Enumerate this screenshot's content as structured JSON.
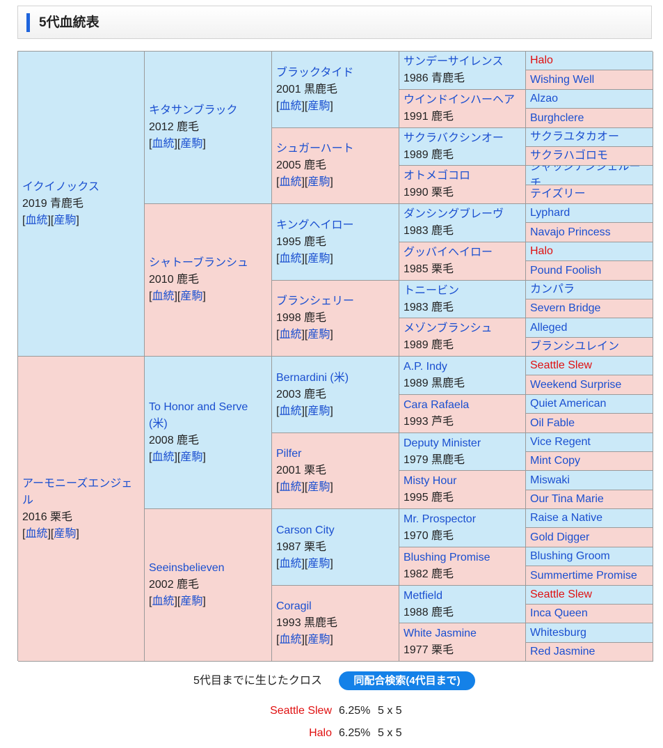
{
  "title": "5代血統表",
  "link_labels": {
    "pedigree": "血統",
    "offspring": "産駒"
  },
  "gen1": [
    {
      "name": "イクイノックス",
      "info": "2019 青鹿毛"
    },
    {
      "name": "アーモニーズエンジェル",
      "info": "2016 栗毛"
    }
  ],
  "gen2": [
    {
      "name": "キタサンブラック",
      "info": "2012 鹿毛"
    },
    {
      "name": "シャトーブランシュ",
      "info": "2010 鹿毛"
    },
    {
      "name": "To Honor and Serve (米)",
      "info": "2008 鹿毛"
    },
    {
      "name": "Seeinsbelieven",
      "info": "2002 鹿毛"
    }
  ],
  "gen3": [
    {
      "name": "ブラックタイド",
      "info": "2001 黒鹿毛"
    },
    {
      "name": "シュガーハート",
      "info": "2005 鹿毛"
    },
    {
      "name": "キングヘイロー",
      "info": "1995 鹿毛"
    },
    {
      "name": "ブランシェリー",
      "info": "1998 鹿毛"
    },
    {
      "name": "Bernardini (米)",
      "info": "2003 鹿毛"
    },
    {
      "name": "Pilfer",
      "info": "2001 栗毛"
    },
    {
      "name": "Carson City",
      "info": "1987 栗毛"
    },
    {
      "name": "Coragil",
      "info": "1993 黒鹿毛"
    }
  ],
  "gen4": [
    {
      "name": "サンデーサイレンス",
      "info": "1986 青鹿毛"
    },
    {
      "name": "ウインドインハーヘア",
      "info": "1991 鹿毛"
    },
    {
      "name": "サクラバクシンオー",
      "info": "1989 鹿毛"
    },
    {
      "name": "オトメゴコロ",
      "info": "1990 栗毛"
    },
    {
      "name": "ダンシングブレーヴ",
      "info": "1983 鹿毛"
    },
    {
      "name": "グッバイヘイロー",
      "info": "1985 栗毛"
    },
    {
      "name": "トニービン",
      "info": "1983 鹿毛"
    },
    {
      "name": "メゾンブランシュ",
      "info": "1989 鹿毛"
    },
    {
      "name": "A.P. Indy",
      "info": "1989 黒鹿毛"
    },
    {
      "name": "Cara Rafaela",
      "info": "1993 芦毛"
    },
    {
      "name": "Deputy Minister",
      "info": "1979 黒鹿毛"
    },
    {
      "name": "Misty Hour",
      "info": "1995 鹿毛"
    },
    {
      "name": "Mr. Prospector",
      "info": "1970 鹿毛"
    },
    {
      "name": "Blushing Promise",
      "info": "1982 鹿毛"
    },
    {
      "name": "Metfield",
      "info": "1988 鹿毛"
    },
    {
      "name": "White Jasmine",
      "info": "1977 栗毛"
    }
  ],
  "gen5": [
    {
      "name": "Halo",
      "cross": true
    },
    {
      "name": "Wishing Well",
      "cross": false
    },
    {
      "name": "Alzao",
      "cross": false
    },
    {
      "name": "Burghclere",
      "cross": false
    },
    {
      "name": "サクラユタカオー",
      "cross": false
    },
    {
      "name": "サクラハゴロモ",
      "cross": false
    },
    {
      "name": "ジャッジアンジェルーチ",
      "cross": false
    },
    {
      "name": "テイズリー",
      "cross": false
    },
    {
      "name": "Lyphard",
      "cross": false
    },
    {
      "name": "Navajo Princess",
      "cross": false
    },
    {
      "name": "Halo",
      "cross": true
    },
    {
      "name": "Pound Foolish",
      "cross": false
    },
    {
      "name": "カンパラ",
      "cross": false
    },
    {
      "name": "Severn Bridge",
      "cross": false
    },
    {
      "name": "Alleged",
      "cross": false
    },
    {
      "name": "ブランシユレイン",
      "cross": false
    },
    {
      "name": "Seattle Slew",
      "cross": true
    },
    {
      "name": "Weekend Surprise",
      "cross": false
    },
    {
      "name": "Quiet American",
      "cross": false
    },
    {
      "name": "Oil Fable",
      "cross": false
    },
    {
      "name": "Vice Regent",
      "cross": false
    },
    {
      "name": "Mint Copy",
      "cross": false
    },
    {
      "name": "Miswaki",
      "cross": false
    },
    {
      "name": "Our Tina Marie",
      "cross": false
    },
    {
      "name": "Raise a Native",
      "cross": false
    },
    {
      "name": "Gold Digger",
      "cross": false
    },
    {
      "name": "Blushing Groom",
      "cross": false
    },
    {
      "name": "Summertime Promise",
      "cross": false
    },
    {
      "name": "Seattle Slew",
      "cross": true
    },
    {
      "name": "Inca Queen",
      "cross": false
    },
    {
      "name": "Whitesburg",
      "cross": false
    },
    {
      "name": "Red Jasmine",
      "cross": false
    }
  ],
  "crosses": {
    "heading": "5代目までに生じたクロス",
    "search_button": "同配合検索(4代目まで)",
    "items": [
      {
        "name": "Seattle Slew",
        "pct": "6.25%",
        "gen": "5 x 5"
      },
      {
        "name": "Halo",
        "pct": "6.25%",
        "gen": "5 x 5"
      }
    ]
  },
  "colors": {
    "male_bg": "#cbe9f8",
    "female_bg": "#f8d6d2",
    "link": "#1a4fd0",
    "cross": "#e01010",
    "accent": "#1e64dc"
  }
}
